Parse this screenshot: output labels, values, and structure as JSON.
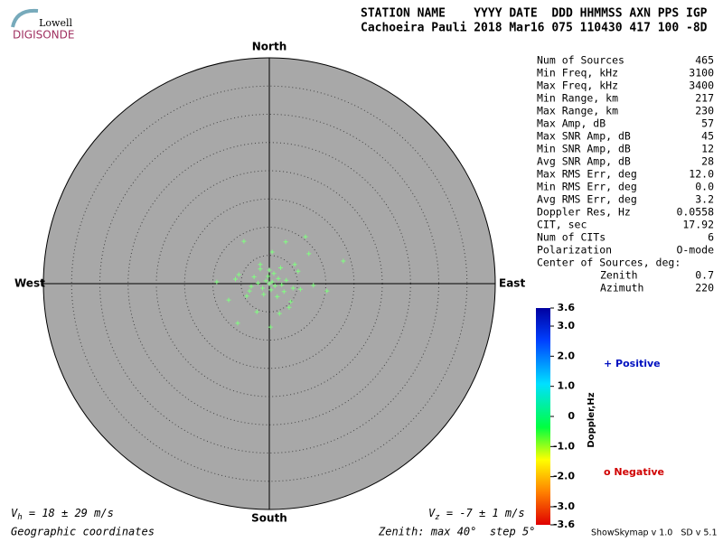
{
  "logo": {
    "top": "Lowell",
    "bottom": "DIGISONDE"
  },
  "header": {
    "line1": "STATION NAME    YYYY DATE  DDD HHMMSS AXN PPS IGP",
    "line2": "Cachoeira Pauli 2018 Mar16 075 110430 417 100 -8D"
  },
  "stats": {
    "rows": [
      [
        "Num of Sources",
        "465"
      ],
      [
        "Min Freq, kHz",
        "3100"
      ],
      [
        "Max Freq, kHz",
        "3400"
      ],
      [
        "Min Range, km",
        "217"
      ],
      [
        "Max Range, km",
        "230"
      ],
      [
        "Max Amp, dB",
        "57"
      ],
      [
        "Max SNR Amp, dB",
        "45"
      ],
      [
        "Min SNR Amp, dB",
        "12"
      ],
      [
        "Avg SNR Amp, dB",
        "28"
      ],
      [
        "Max RMS Err, deg",
        "12.0"
      ],
      [
        "Min RMS Err, deg",
        "0.0"
      ],
      [
        "Avg RMS Err, deg",
        "3.2"
      ],
      [
        "Doppler Res, Hz",
        "0.0558"
      ],
      [
        "CIT, sec",
        "17.92"
      ],
      [
        "Num of CITs",
        "6"
      ],
      [
        "Polarization",
        "O-mode"
      ]
    ],
    "center_title": "Center of Sources, deg:",
    "center_rows": [
      [
        "Zenith",
        "0.7"
      ],
      [
        "Azimuth",
        "220"
      ]
    ]
  },
  "chart_data": {
    "type": "scatter",
    "directions": {
      "north": "North",
      "south": "South",
      "east": "East",
      "west": "West"
    },
    "xlim": [
      -40,
      40
    ],
    "ylim": [
      -40,
      40
    ],
    "rticks": [
      5,
      10,
      15,
      20,
      25,
      30,
      35
    ],
    "grid": true,
    "color": "#80ff80",
    "x": [
      -4.5,
      2.9,
      6.4,
      7.0,
      13.1,
      0.5,
      -1.6,
      10.2,
      7.8,
      -5.6,
      0.2,
      3.5,
      -9.3,
      -7.2,
      5.1,
      4.5,
      -2.2,
      1.8,
      3.8,
      -5.4,
      -3.5,
      0,
      0.5,
      -0.6,
      1.0,
      -1.2,
      0.3,
      1.6,
      -0.2,
      2.2,
      -2.0,
      0.8,
      -1.0,
      2.6,
      -2.7,
      1.4,
      3.0,
      -3.2,
      0.0,
      -1.6,
      2.0,
      4.2,
      -4.0,
      5.5,
      -6.0
    ],
    "y": [
      7.5,
      7.4,
      8.3,
      5.3,
      4.0,
      5.6,
      3.4,
      -1.3,
      -0.3,
      -7.0,
      -7.7,
      -4.2,
      0.3,
      -2.9,
      2.2,
      3.4,
      -5.0,
      -5.3,
      -3.2,
      1.6,
      -1.3,
      0,
      0.3,
      0.5,
      -0.4,
      -0.8,
      -1.1,
      0.9,
      1.3,
      -0.2,
      0.1,
      1.8,
      -1.9,
      -1.4,
      1.2,
      -2.3,
      0.6,
      -0.5,
      2.4,
      2.6,
      2.8,
      -0.8,
      -2.2,
      -1.0,
      0.8
    ]
  },
  "colorbar": {
    "label": "Doppler,Hz",
    "lim": [
      -3.6,
      3.6
    ],
    "ticks": [
      {
        "value": 3.6,
        "label": "3.6"
      },
      {
        "value": 3,
        "label": "3.0"
      },
      {
        "value": 2,
        "label": "2.0"
      },
      {
        "value": 1,
        "label": "1.0"
      },
      0,
      {
        "value": -1,
        "label": "-1.0"
      },
      {
        "value": -2,
        "label": "-2.0"
      },
      {
        "value": -3,
        "label": "-3.0"
      },
      {
        "value": -3.6,
        "label": "-3.6"
      }
    ],
    "positive": "+ Positive",
    "negative": "o Negative"
  },
  "footer": {
    "vh": {
      "symbol": "V",
      "sub": "h",
      "text": " = 18 ± 29 m/s"
    },
    "vz": {
      "symbol": "V",
      "sub": "z",
      "text": " = -7 ± 1 m/s"
    },
    "coords": "Geographic coordinates",
    "zenith": "Zenith: max 40°  step 5°",
    "version": "ShowSkymap v 1.0   SD v 5.1"
  }
}
